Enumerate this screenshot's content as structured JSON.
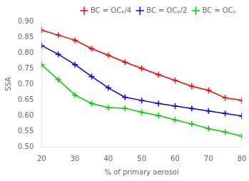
{
  "chart_data": {
    "type": "line",
    "xlabel": "% of primary aerosol",
    "ylabel": "SSA",
    "x": [
      20,
      25,
      30,
      35,
      40,
      45,
      50,
      55,
      60,
      65,
      70,
      75,
      80
    ],
    "series": [
      {
        "name": "BC = OCₚ/4",
        "color": "#ff0000",
        "marker": "plus",
        "line_style": "solid",
        "values": [
          0.872,
          0.856,
          0.84,
          0.813,
          0.792,
          0.77,
          0.75,
          0.73,
          0.712,
          0.693,
          0.68,
          0.656,
          0.648
        ]
      },
      {
        "name": "BC = OCₚ/2",
        "color": "#0000ff",
        "marker": "plus",
        "line_style": "solid",
        "values": [
          0.823,
          0.795,
          0.762,
          0.724,
          0.688,
          0.658,
          0.648,
          0.638,
          0.63,
          0.622,
          0.614,
          0.606,
          0.598
        ]
      },
      {
        "name": "BC = OCₚ",
        "color": "#00cc00",
        "marker": "plus",
        "line_style": "solid",
        "values": [
          0.762,
          0.714,
          0.665,
          0.638,
          0.625,
          0.623,
          0.61,
          0.6,
          0.586,
          0.573,
          0.558,
          0.547,
          0.534
        ]
      }
    ],
    "xlim": [
      20,
      80
    ],
    "xticks": [
      20,
      30,
      40,
      50,
      60,
      70,
      80
    ],
    "ylim": [
      0.5,
      0.9
    ],
    "yticks": [
      {
        "value": 0.5,
        "label": "0.50"
      },
      0.55,
      {
        "value": 0.6,
        "label": "0.60"
      },
      0.65,
      {
        "value": 0.7,
        "label": "0.70"
      },
      0.75,
      {
        "value": 0.8,
        "label": "0.80"
      },
      0.85,
      {
        "value": 0.9,
        "label": "0.90"
      }
    ],
    "grid": false,
    "legend": "upper right"
  }
}
